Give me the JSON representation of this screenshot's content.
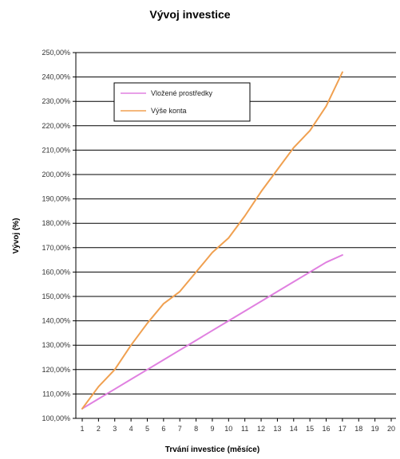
{
  "chart_data": {
    "type": "line",
    "title": "Vývoj investice",
    "xlabel": "Trvání investice (měsíce)",
    "ylabel": "Vývoj (%)",
    "x_ticks": [
      "1",
      "2",
      "3",
      "4",
      "5",
      "6",
      "7",
      "8",
      "9",
      "10",
      "11",
      "12",
      "13",
      "14",
      "15",
      "16",
      "17",
      "18",
      "19",
      "20"
    ],
    "y_ticks": [
      "100,00%",
      "110,00%",
      "120,00%",
      "130,00%",
      "140,00%",
      "150,00%",
      "160,00%",
      "170,00%",
      "180,00%",
      "190,00%",
      "200,00%",
      "210,00%",
      "220,00%",
      "230,00%",
      "240,00%",
      "250,00%"
    ],
    "xlim": [
      1,
      20
    ],
    "ylim": [
      100,
      250
    ],
    "grid": true,
    "legend_position": "top-left",
    "series": [
      {
        "name": "Vložené prostředky",
        "color": "#e080e0",
        "x": [
          1,
          2,
          3,
          4,
          5,
          6,
          7,
          8,
          9,
          10,
          11,
          12,
          13,
          14,
          15,
          16,
          17
        ],
        "values": [
          104,
          108,
          112,
          116,
          120,
          124,
          128,
          132,
          136,
          140,
          144,
          148,
          152,
          156,
          160,
          164,
          167
        ]
      },
      {
        "name": "Výše konta",
        "color": "#f0a050",
        "x": [
          1,
          2,
          3,
          4,
          5,
          6,
          7,
          8,
          9,
          10,
          11,
          12,
          13,
          14,
          15,
          16,
          17
        ],
        "values": [
          104,
          113,
          120,
          130,
          139,
          147,
          152,
          160,
          168,
          174,
          183,
          193,
          202,
          211,
          218,
          228,
          242
        ]
      }
    ]
  }
}
